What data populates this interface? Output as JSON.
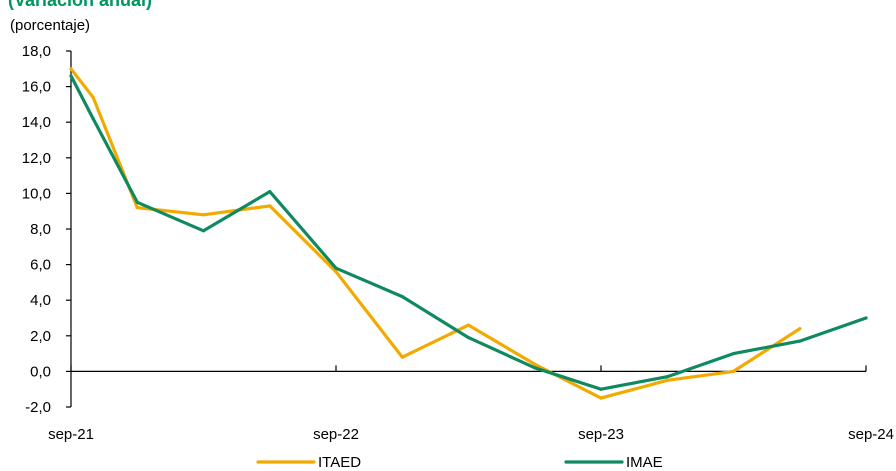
{
  "chart_data": {
    "type": "line",
    "title": "(Variación anual)",
    "title_color": "#00965E",
    "ylabel": "(porcentaje)",
    "ylim": [
      -2,
      18
    ],
    "yticks": [
      -2,
      0,
      2,
      4,
      6,
      8,
      10,
      12,
      14,
      16,
      18
    ],
    "ytick_labels": [
      "-2,0",
      "0,0",
      "2,0",
      "4,0",
      "6,0",
      "8,0",
      "10,0",
      "12,0",
      "14,0",
      "16,0",
      "18,0"
    ],
    "xlim": [
      "2021-09",
      "2024-09"
    ],
    "xticks": [
      "2021-09",
      "2022-09",
      "2023-09",
      "2024-09"
    ],
    "xtick_labels": [
      "sep-21",
      "sep-22",
      "sep-23",
      "sep-24"
    ],
    "grid": false,
    "legend_position": "bottom",
    "series": [
      {
        "name": "ITAED",
        "color": "#F2A900",
        "x": [
          "2021-09",
          "2021-10",
          "2021-12",
          "2022-03",
          "2022-06",
          "2022-09",
          "2022-12",
          "2023-03",
          "2023-06",
          "2023-09",
          "2023-12",
          "2024-03",
          "2024-06"
        ],
        "values": [
          17.0,
          15.4,
          9.2,
          8.8,
          9.3,
          5.6,
          0.8,
          2.6,
          0.4,
          -1.5,
          -0.5,
          0.0,
          2.4
        ]
      },
      {
        "name": "IMAE",
        "color": "#0F8A60",
        "x": [
          "2021-09",
          "2021-10",
          "2021-12",
          "2022-03",
          "2022-06",
          "2022-09",
          "2022-12",
          "2023-03",
          "2023-06",
          "2023-09",
          "2023-12",
          "2024-03",
          "2024-06",
          "2024-09"
        ],
        "values": [
          16.6,
          14.2,
          9.5,
          7.9,
          10.1,
          5.8,
          4.2,
          1.9,
          0.2,
          -1.0,
          -0.3,
          1.0,
          1.7,
          3.0
        ]
      }
    ]
  }
}
